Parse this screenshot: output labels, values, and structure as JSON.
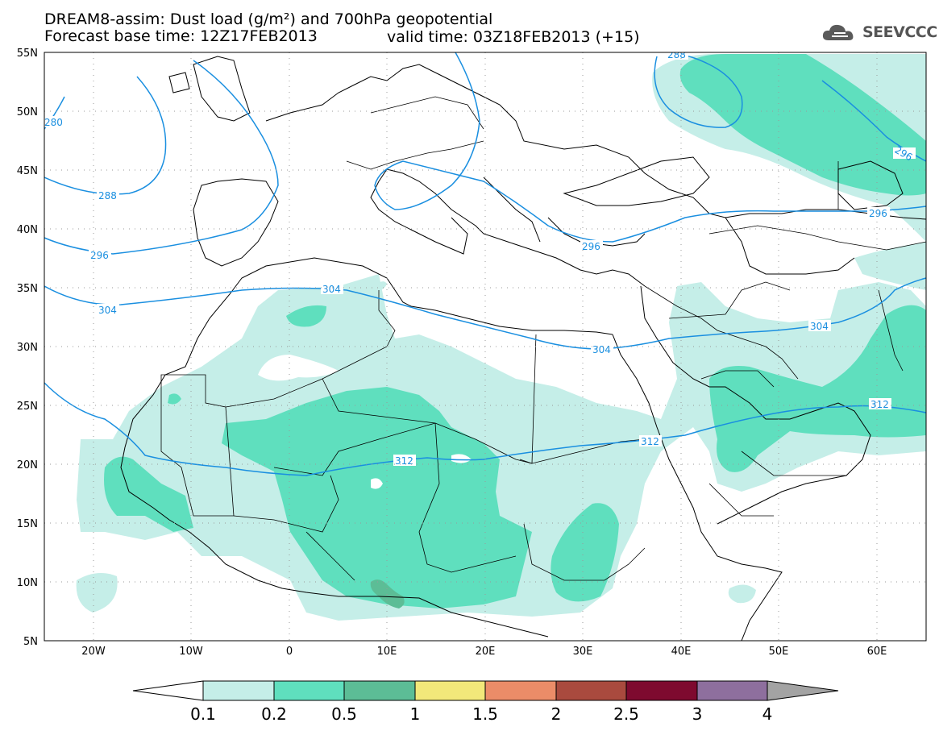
{
  "title": {
    "line1": "DREAM8-assim: Dust load (g/m²) and 700hPa geopotential",
    "base": "Forecast base time: 12Z17FEB2013",
    "valid": "valid time: 03Z18FEB2013 (+15)"
  },
  "logo": {
    "text": "SEEVCCC",
    "icon": "cloud-icon"
  },
  "axes": {
    "lat_labels": [
      "55N",
      "50N",
      "45N",
      "40N",
      "35N",
      "30N",
      "25N",
      "20N",
      "15N",
      "10N",
      "5N"
    ],
    "lon_labels": [
      "20W",
      "10W",
      "0",
      "10E",
      "20E",
      "30E",
      "40E",
      "50E",
      "60E"
    ],
    "lat_range": [
      5,
      55
    ],
    "lon_range": [
      -25,
      65
    ]
  },
  "contours": {
    "units": "geopotential",
    "labels": [
      "280",
      "288",
      "296",
      "304",
      "312",
      "288",
      "296",
      "296",
      "296",
      "304",
      "304",
      "304",
      "312",
      "312"
    ]
  },
  "colorbar": {
    "ticks": [
      "0.1",
      "0.2",
      "0.5",
      "1",
      "1.5",
      "2",
      "2.5",
      "3",
      "4"
    ],
    "colors": [
      "#ffffff",
      "#c5eee8",
      "#5fdfbe",
      "#5cbd96",
      "#f2e87a",
      "#eb8c68",
      "#a94a3e",
      "#7e0a2f",
      "#8e6f9e",
      "#a3a3a3"
    ]
  }
}
